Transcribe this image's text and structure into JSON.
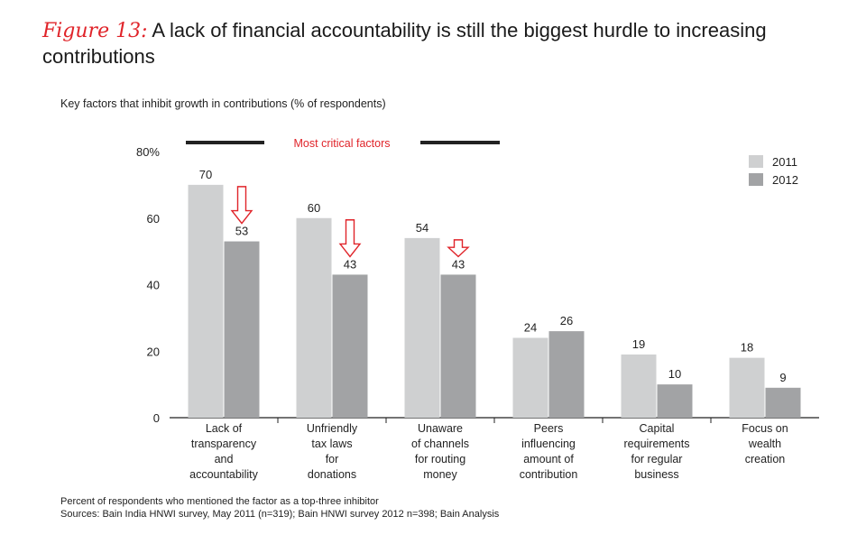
{
  "figure": {
    "label": "Figure 13:",
    "title": "A lack of financial accountability is still the biggest hurdle to increasing contributions"
  },
  "chart_data": {
    "type": "bar",
    "title": "Key factors that inhibit growth in contributions (% of respondents)",
    "categories": [
      [
        "Lack of",
        "transparency",
        "and",
        "accountability"
      ],
      [
        "Unfriendly",
        "tax laws",
        "for",
        "donations"
      ],
      [
        "Unaware",
        "of channels",
        "for routing",
        "money"
      ],
      [
        "Peers",
        "influencing",
        "amount of",
        "contribution"
      ],
      [
        "Capital",
        "requirements",
        "for regular",
        "business"
      ],
      [
        "Focus on",
        "wealth",
        "creation"
      ]
    ],
    "series": [
      {
        "name": "2011",
        "values": [
          70,
          60,
          54,
          24,
          19,
          18
        ],
        "color": "#cfd0d1"
      },
      {
        "name": "2012",
        "values": [
          53,
          43,
          43,
          26,
          10,
          9
        ],
        "color": "#a2a3a5"
      }
    ],
    "ylim": [
      0,
      80
    ],
    "yticks": [
      "0",
      "20",
      "40",
      "60",
      "80%"
    ],
    "ytick_values": [
      0,
      20,
      40,
      60,
      80
    ],
    "legend_position": "top-right",
    "grid": false,
    "annotation": "Most critical factors",
    "decline_arrows_on_categories": [
      0,
      1,
      2
    ],
    "arrow_color": "#e0242a"
  },
  "footnotes": [
    "Percent of respondents who mentioned the factor as a top-three inhibitor",
    "Sources: Bain India HNWI survey, May 2011 (n=319); Bain HNWI survey 2012 n=398; Bain Analysis"
  ]
}
